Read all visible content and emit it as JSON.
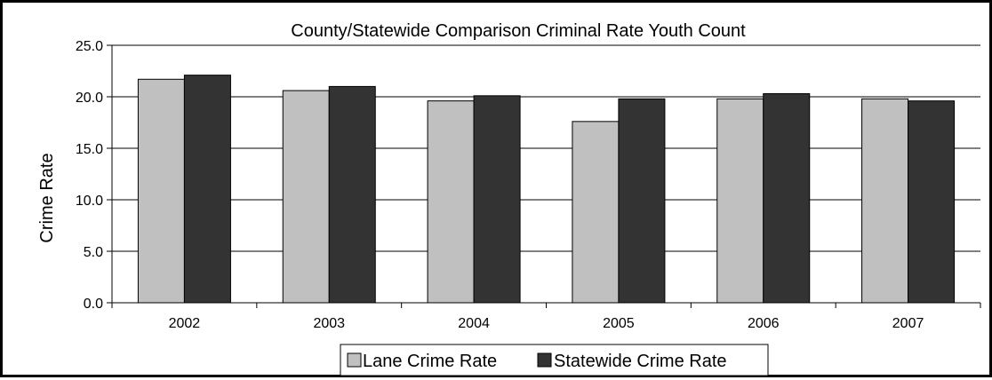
{
  "chart_data": {
    "type": "bar",
    "title": "County/Statewide Comparison Criminal Rate Youth Count",
    "xlabel": "",
    "ylabel": "Crime Rate",
    "categories": [
      "2002",
      "2003",
      "2004",
      "2005",
      "2006",
      "2007"
    ],
    "series": [
      {
        "name": "Lane Crime Rate",
        "values": [
          21.7,
          20.6,
          19.6,
          17.6,
          19.8,
          19.8
        ],
        "color": "#c0c0c0"
      },
      {
        "name": "Statewide Crime Rate",
        "values": [
          22.1,
          21.0,
          20.1,
          19.8,
          20.3,
          19.6
        ],
        "color": "#333333"
      }
    ],
    "ylim": [
      0,
      25
    ],
    "yticks": [
      "0.0",
      "5.0",
      "10.0",
      "15.0",
      "20.0",
      "25.0"
    ],
    "grid": true,
    "legend": "bottom"
  }
}
